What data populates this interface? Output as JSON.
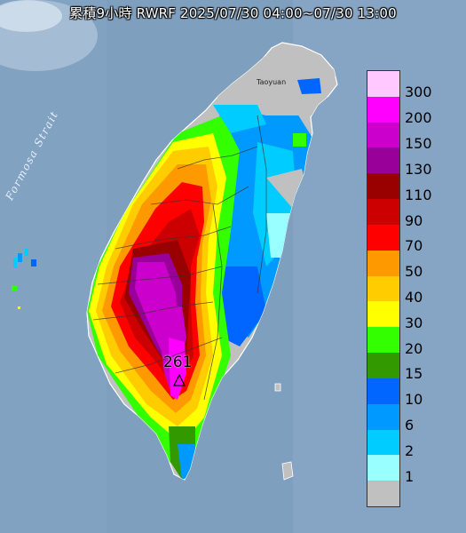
{
  "title": "累積9小時 RWRF 2025/07/30 04:00~07/30 13:00",
  "strait_label": "Formosa Strait",
  "city_label": "Taoyuan",
  "max_value_label": "261",
  "legend": [
    {
      "label": "300",
      "color": "#ffc8ff"
    },
    {
      "label": "200",
      "color": "#ff00ff"
    },
    {
      "label": "150",
      "color": "#cc00cc"
    },
    {
      "label": "130",
      "color": "#990099"
    },
    {
      "label": "110",
      "color": "#990000"
    },
    {
      "label": "90",
      "color": "#cc0000"
    },
    {
      "label": "70",
      "color": "#ff0000"
    },
    {
      "label": "50",
      "color": "#ff9900"
    },
    {
      "label": "40",
      "color": "#ffcc00"
    },
    {
      "label": "30",
      "color": "#ffff00"
    },
    {
      "label": "20",
      "color": "#33ff00"
    },
    {
      "label": "15",
      "color": "#339900"
    },
    {
      "label": "10",
      "color": "#0066ff"
    },
    {
      "label": "6",
      "color": "#0099ff"
    },
    {
      "label": "2",
      "color": "#00ccff"
    },
    {
      "label": "1",
      "color": "#99ffff"
    },
    {
      "label": "",
      "color": "#c0c0c0"
    }
  ],
  "colors": {
    "sea": "#7f9fbf",
    "land_no_rain": "#c0c0c0"
  }
}
